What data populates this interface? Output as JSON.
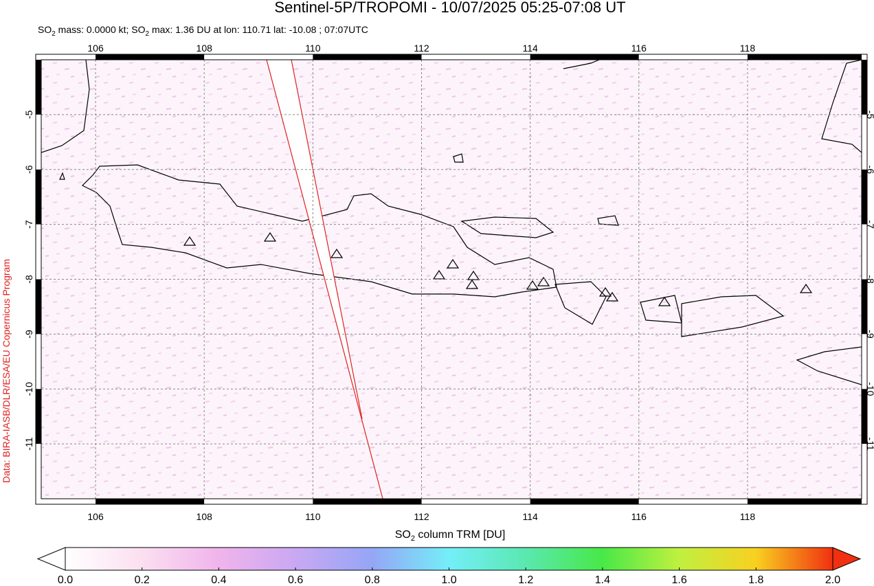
{
  "header": {
    "title": "Sentinel-5P/TROPOMI - 10/07/2025 05:25-07:08 UT",
    "subtitle": [
      "SO",
      "2",
      " mass: 0.0000 kt; SO",
      "2",
      " max: 1.36 DU at lon: 110.71 lat: -10.08 ; 07:07UTC"
    ]
  },
  "map": {
    "xlim": [
      105,
      120.1
    ],
    "ylim": [
      -12,
      -4
    ],
    "xticks": [
      106,
      108,
      110,
      112,
      114,
      116,
      118
    ],
    "yticks": [
      -5,
      -6,
      -7,
      -8,
      -9,
      -10,
      -11
    ]
  },
  "colorbar": {
    "label": [
      "SO",
      "2",
      " column TRM [DU]"
    ],
    "lim": [
      0,
      2
    ],
    "ticks": [
      {
        "value": 0,
        "label": "0.0"
      },
      {
        "value": 0.2,
        "label": "0.2"
      },
      {
        "value": 0.4,
        "label": "0.4"
      },
      {
        "value": 0.6,
        "label": "0.6"
      },
      {
        "value": 0.8,
        "label": "0.8"
      },
      {
        "value": 1,
        "label": "1.0"
      },
      {
        "value": 1.2,
        "label": "1.2"
      },
      {
        "value": 1.4,
        "label": "1.4"
      },
      {
        "value": 1.6,
        "label": "1.6"
      },
      {
        "value": 1.8,
        "label": "1.8"
      },
      {
        "value": 2,
        "label": "2.0"
      }
    ]
  },
  "credit": "Data: BIRA-IASB/DLR/ESA/EU Copernicus Program"
}
